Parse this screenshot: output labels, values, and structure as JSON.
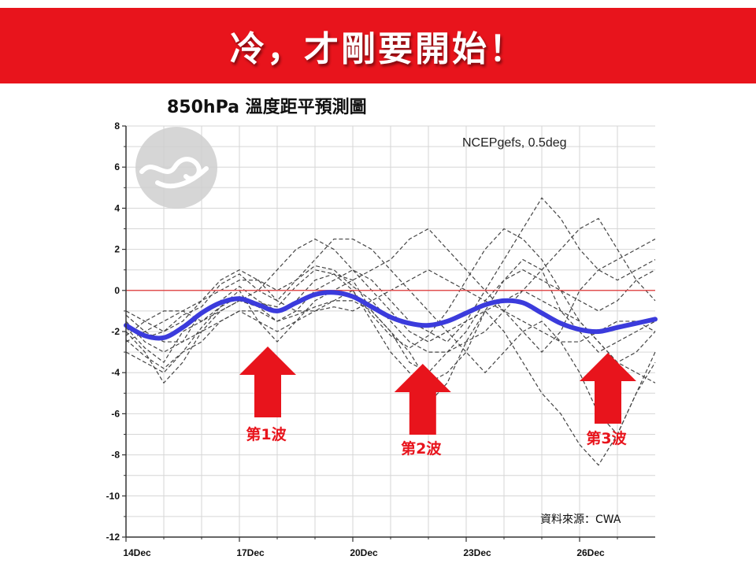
{
  "banner": {
    "title": "冷，才剛要開始！"
  },
  "subtitle": "850hPa 溫度距平預測圖",
  "colors": {
    "banner": "#e8141c",
    "mean_line": "#3b3bdc",
    "zero_line": "#e05050",
    "arrow": "#e8141c",
    "ensemble": "#444444"
  },
  "icons": {
    "logo": "cwa-cloud-logo-icon",
    "arrow": "up-arrow-icon"
  },
  "chart_data": {
    "type": "line",
    "model_label": "NCEPgefs, 0.5deg",
    "source_label": "資料來源：CWA",
    "xlim": [
      0,
      14
    ],
    "ylim": [
      -12,
      8
    ],
    "y_ticks": [
      8,
      6,
      4,
      2,
      0,
      -2,
      -4,
      -6,
      -8,
      -10,
      -12
    ],
    "x_ticks": [
      {
        "x": 0,
        "label": "14Dec"
      },
      {
        "x": 3,
        "label": "17Dec"
      },
      {
        "x": 6,
        "label": "20Dec"
      },
      {
        "x": 9,
        "label": "23Dec"
      },
      {
        "x": 12,
        "label": "26Dec"
      }
    ],
    "grid": true,
    "reference_line": 0,
    "ensemble_mean": {
      "x": [
        0,
        0.5,
        1,
        1.5,
        2,
        2.5,
        3,
        3.5,
        4,
        4.5,
        5,
        5.5,
        6,
        6.5,
        7,
        7.5,
        8,
        8.5,
        9,
        9.5,
        10,
        10.5,
        11,
        11.5,
        12,
        12.5,
        13,
        13.5,
        14
      ],
      "y": [
        -1.7,
        -2.2,
        -2.3,
        -1.8,
        -1.1,
        -0.6,
        -0.4,
        -0.7,
        -1.0,
        -0.6,
        -0.2,
        -0.1,
        -0.3,
        -0.8,
        -1.3,
        -1.6,
        -1.7,
        -1.5,
        -1.1,
        -0.7,
        -0.5,
        -0.6,
        -1.1,
        -1.6,
        -1.9,
        -2.0,
        -1.8,
        -1.6,
        -1.4
      ]
    },
    "ensemble_members": [
      [
        -1.5,
        -2.5,
        -3.0,
        -2.5,
        -1.0,
        -0.5,
        0.2,
        -0.5,
        -1.0,
        -0.5,
        0.5,
        0.8,
        0.5,
        -1.0,
        -2.0,
        -3.0,
        -4.5,
        -4.0,
        -3.0,
        -1.0,
        0.5,
        1.5,
        1.0,
        -1.0,
        -2.0,
        -3.0,
        -2.5,
        -2.0,
        -1.5
      ],
      [
        -2.0,
        -3.0,
        -4.5,
        -3.5,
        -2.0,
        -1.0,
        -0.5,
        -0.8,
        -1.5,
        -1.0,
        0.0,
        0.5,
        1.0,
        0.5,
        -0.5,
        -1.5,
        -2.0,
        -2.5,
        -1.5,
        0.0,
        1.5,
        3.0,
        4.5,
        3.5,
        2.0,
        1.0,
        0.5,
        1.0,
        1.5
      ],
      [
        -1.0,
        -1.5,
        -2.0,
        -1.5,
        -0.5,
        0.0,
        0.5,
        0.5,
        0.0,
        0.5,
        1.5,
        2.5,
        2.5,
        2.0,
        1.0,
        0.0,
        -1.0,
        -2.0,
        -3.0,
        -4.0,
        -3.0,
        -2.0,
        -1.5,
        -2.5,
        -4.0,
        -6.0,
        -7.0,
        -5.0,
        -3.0
      ],
      [
        -2.5,
        -2.0,
        -1.5,
        -1.0,
        -0.5,
        0.5,
        1.0,
        0.5,
        -0.5,
        -1.0,
        -1.0,
        -0.5,
        0.0,
        -1.5,
        -3.0,
        -4.0,
        -5.5,
        -4.5,
        -2.5,
        -1.0,
        -0.5,
        0.0,
        -0.5,
        -1.0,
        -1.5,
        -2.5,
        -3.5,
        -4.0,
        -4.5
      ],
      [
        -1.8,
        -2.8,
        -3.5,
        -2.0,
        -1.5,
        -0.8,
        0.0,
        -1.5,
        -2.5,
        -1.5,
        -0.5,
        0.0,
        0.5,
        1.0,
        1.5,
        2.5,
        3.0,
        2.0,
        1.0,
        0.0,
        -1.0,
        -2.0,
        -3.0,
        -2.0,
        0.0,
        1.0,
        1.5,
        2.0,
        2.5
      ],
      [
        -2.2,
        -1.5,
        -1.0,
        -1.0,
        -1.5,
        -1.0,
        -0.5,
        0.0,
        1.0,
        2.0,
        2.5,
        2.0,
        1.0,
        0.0,
        -1.0,
        -2.0,
        -2.5,
        -2.0,
        -1.5,
        -1.0,
        -2.0,
        -3.5,
        -5.0,
        -6.0,
        -7.5,
        -8.5,
        -7.0,
        -5.0,
        -3.5
      ],
      [
        -1.2,
        -2.0,
        -2.5,
        -2.5,
        -2.0,
        -1.5,
        -1.0,
        -1.0,
        -1.5,
        -1.2,
        -0.8,
        -0.5,
        -0.5,
        -1.0,
        -2.0,
        -3.5,
        -4.0,
        -3.0,
        -2.0,
        -0.5,
        0.5,
        1.0,
        0.5,
        0.0,
        -0.5,
        -1.0,
        -0.5,
        0.5,
        1.0
      ],
      [
        -3.0,
        -3.5,
        -4.0,
        -3.0,
        -2.5,
        -1.5,
        -1.0,
        -1.5,
        -2.0,
        -1.5,
        -1.0,
        -0.8,
        -1.0,
        -0.5,
        0.0,
        0.5,
        1.0,
        0.5,
        0.0,
        -0.5,
        -1.0,
        -1.5,
        -2.0,
        -2.5,
        -2.5,
        -2.0,
        -1.5,
        -1.5,
        -2.0
      ],
      [
        -1.6,
        -2.3,
        -2.0,
        -1.2,
        -0.8,
        0.3,
        0.8,
        0.0,
        -0.5,
        0.5,
        1.2,
        1.0,
        0.2,
        -0.5,
        -1.5,
        -2.5,
        -3.0,
        -3.0,
        -2.5,
        -2.0,
        -1.0,
        0.0,
        1.0,
        2.0,
        3.0,
        3.5,
        2.0,
        0.5,
        -0.5
      ],
      [
        -2.4,
        -3.2,
        -3.8,
        -3.0,
        -1.8,
        -0.8,
        -0.3,
        -0.6,
        -0.8,
        0.2,
        1.0,
        0.8,
        0.0,
        -1.2,
        -2.2,
        -2.8,
        -2.2,
        -1.0,
        0.5,
        2.0,
        3.0,
        2.5,
        1.5,
        0.0,
        -1.5,
        -2.5,
        -3.5,
        -3.0,
        -2.0
      ]
    ]
  },
  "waves": [
    {
      "label": "第1波",
      "x": 3.75
    },
    {
      "label": "第2波",
      "x": 7.85
    },
    {
      "label": "第3波",
      "x": 12.75
    }
  ]
}
